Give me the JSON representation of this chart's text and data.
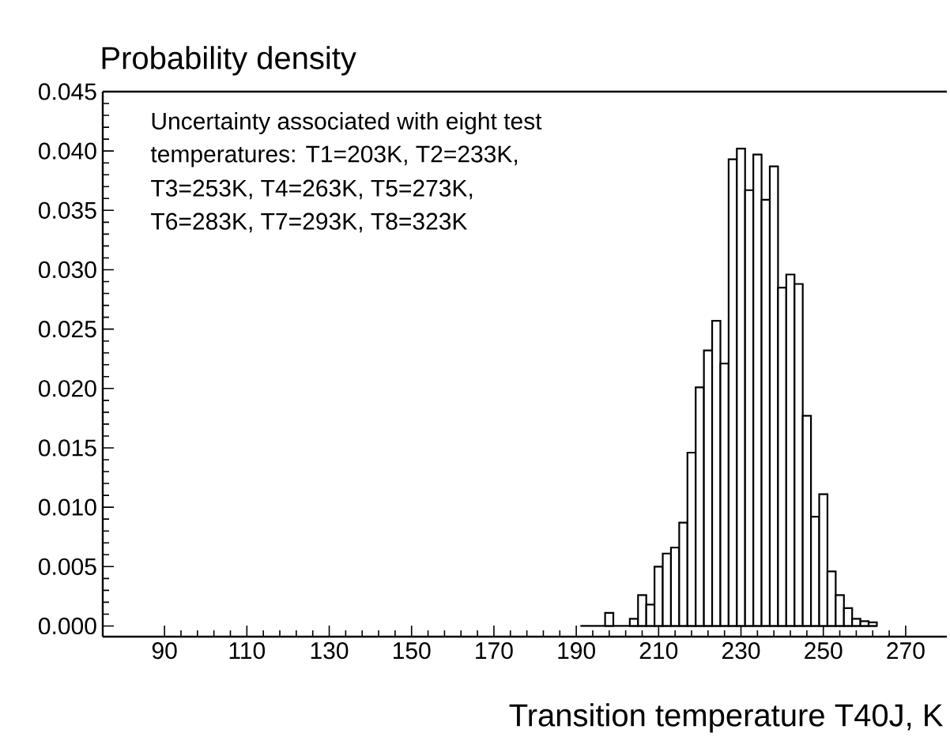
{
  "chart_data": {
    "type": "histogram",
    "ylabel": "Probability density",
    "xlabel": "Transition temperature T40J, K",
    "annotations": [
      "Uncertainty associated with eight test",
      "temperatures: T1=203K, T2=233K,",
      "T3=253K, T4=263K, T5=273K,",
      "T6=283K, T7=293K, T8=323K"
    ],
    "bins": [
      191,
      193,
      195,
      197,
      199,
      201,
      203,
      205,
      207,
      209,
      211,
      213,
      215,
      217,
      219,
      221,
      223,
      225,
      227,
      229,
      231,
      233,
      235,
      237,
      239,
      241,
      243,
      245,
      247,
      249,
      251,
      253,
      255,
      257,
      259,
      261,
      263
    ],
    "values": [
      0,
      0,
      0,
      0.0011,
      0,
      0,
      0.0006,
      0.0026,
      0.0018,
      0.005,
      0.0061,
      0.0066,
      0.0087,
      0.0146,
      0.0201,
      0.0232,
      0.0257,
      0.0221,
      0.0393,
      0.0402,
      0.0367,
      0.0397,
      0.0359,
      0.0387,
      0.0285,
      0.0296,
      0.0288,
      0.0177,
      0.0092,
      0.0111,
      0.0046,
      0.0026,
      0.0015,
      0.0006,
      0.0004,
      0.0003
    ],
    "color": "#ffffff",
    "xlim": [
      75,
      280
    ],
    "xticks": [
      90,
      110,
      130,
      150,
      170,
      190,
      210,
      230,
      250,
      270
    ],
    "ylim": [
      -0.0009,
      0.045
    ],
    "yticks": [
      {
        "value": 0,
        "label": "0.000"
      },
      {
        "value": 0.005,
        "label": "0.005"
      },
      {
        "value": 0.01,
        "label": "0.010"
      },
      {
        "value": 0.015,
        "label": "0.015"
      },
      {
        "value": 0.02,
        "label": "0.020"
      },
      {
        "value": 0.025,
        "label": "0.025"
      },
      {
        "value": 0.03,
        "label": "0.030"
      },
      {
        "value": 0.035,
        "label": "0.035"
      },
      {
        "value": 0.04,
        "label": "0.040"
      },
      {
        "value": 0.045,
        "label": "0.045"
      }
    ],
    "ref_lines": [
      {
        "axis": "y",
        "value": 0,
        "color": "#000000"
      }
    ],
    "grid": false
  }
}
